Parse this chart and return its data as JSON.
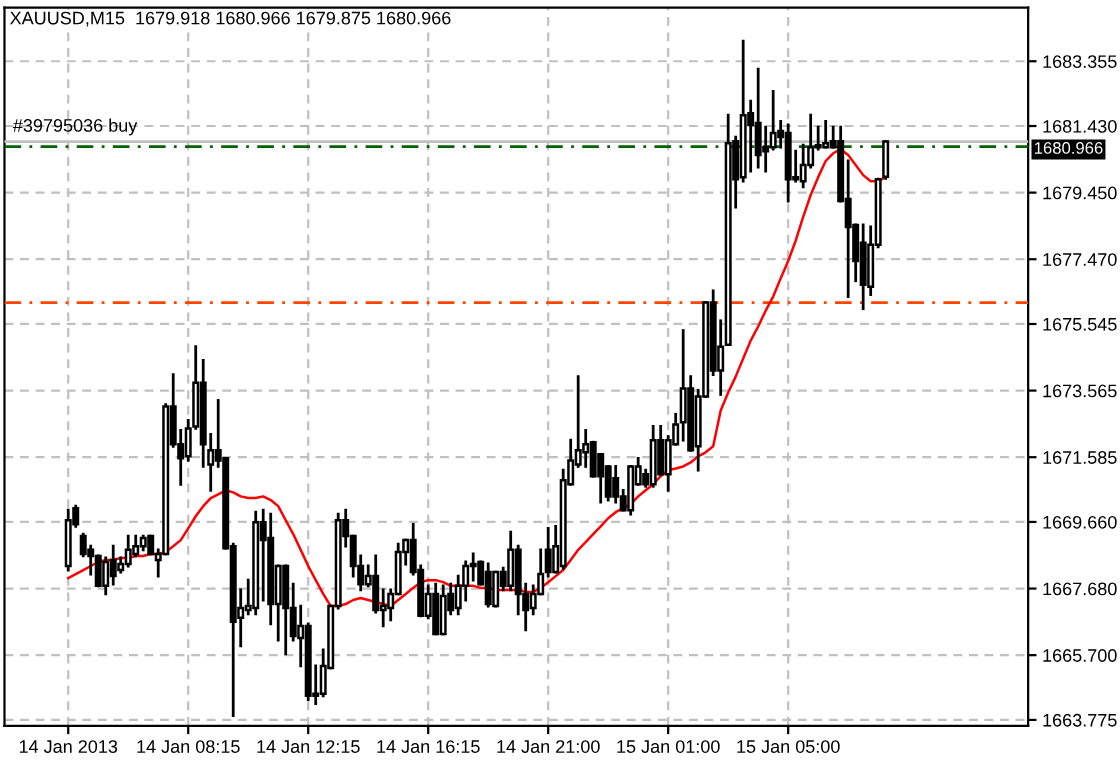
{
  "chart_data": {
    "type": "candlestick",
    "title": "XAUUSD,M15  1679.918 1680.966 1679.875 1680.966",
    "categories": [
      "14 Jan 2013",
      null,
      null,
      null,
      null,
      null,
      null,
      null,
      null,
      null,
      null,
      null,
      null,
      null,
      null,
      null,
      "14 Jan 08:15",
      null,
      null,
      null,
      null,
      null,
      null,
      null,
      null,
      null,
      null,
      null,
      null,
      null,
      null,
      null,
      "14 Jan 12:15",
      null,
      null,
      null,
      null,
      null,
      null,
      null,
      null,
      null,
      null,
      null,
      null,
      null,
      null,
      null,
      "14 Jan 16:15",
      null,
      null,
      null,
      null,
      null,
      null,
      null,
      null,
      null,
      null,
      null,
      null,
      null,
      null,
      null,
      "14 Jan 21:00",
      null,
      null,
      null,
      null,
      null,
      null,
      null,
      null,
      null,
      null,
      null,
      null,
      null,
      null,
      null,
      "15 Jan 01:00",
      null,
      null,
      null,
      null,
      null,
      null,
      null,
      null,
      null,
      null,
      null,
      null,
      null,
      null,
      null,
      "15 Jan 05:00",
      null,
      null,
      null,
      null,
      null,
      null,
      null,
      null,
      null,
      null,
      null,
      null,
      null
    ],
    "ohlc": [
      [
        1668.35,
        1670.01,
        1668.23,
        1669.71
      ],
      [
        1670.07,
        1670.13,
        1669.53,
        1669.59
      ],
      [
        1669.24,
        1669.3,
        1668.65,
        1668.71
      ],
      [
        1668.83,
        1668.94,
        1668.11,
        1668.65
      ],
      [
        1668.65,
        1668.65,
        1667.76,
        1667.76
      ],
      [
        1667.76,
        1668.59,
        1667.52,
        1668.47
      ],
      [
        1668.53,
        1668.94,
        1667.81,
        1668.05
      ],
      [
        1668.23,
        1668.59,
        1668.17,
        1668.41
      ],
      [
        1668.41,
        1669.24,
        1668.35,
        1668.83
      ],
      [
        1668.71,
        1669.24,
        1668.65,
        1668.94
      ],
      [
        1668.94,
        1669.24,
        1668.83,
        1669.18
      ],
      [
        1669.24,
        1669.24,
        1668.71,
        1668.71
      ],
      [
        1668.53,
        1668.83,
        1668.05,
        1668.71
      ],
      [
        1668.71,
        1673.15,
        1668.71,
        1673.09
      ],
      [
        1673.09,
        1674.04,
        1671.91,
        1671.97
      ],
      [
        1671.97,
        1672.38,
        1670.78,
        1671.55
      ],
      [
        1671.61,
        1672.68,
        1671.49,
        1672.44
      ],
      [
        1672.5,
        1674.87,
        1672.44,
        1673.8
      ],
      [
        1673.8,
        1674.46,
        1671.31,
        1671.97
      ],
      [
        1671.37,
        1672.26,
        1670.6,
        1671.79
      ],
      [
        1671.79,
        1673.27,
        1671.31,
        1671.49
      ],
      [
        1671.55,
        1671.55,
        1668.88,
        1668.88
      ],
      [
        1668.94,
        1669.0,
        1663.9,
        1666.69
      ],
      [
        1666.81,
        1667.64,
        1665.98,
        1667.1
      ],
      [
        1667.04,
        1667.93,
        1666.93,
        1667.16
      ],
      [
        1667.1,
        1669.95,
        1666.93,
        1669.65
      ],
      [
        1669.65,
        1670.01,
        1667.34,
        1669.12
      ],
      [
        1669.18,
        1669.89,
        1666.63,
        1667.22
      ],
      [
        1667.22,
        1668.35,
        1666.15,
        1668.35
      ],
      [
        1668.35,
        1668.35,
        1665.74,
        1667.1
      ],
      [
        1667.1,
        1667.81,
        1666.15,
        1666.27
      ],
      [
        1666.21,
        1667.16,
        1665.38,
        1666.57
      ],
      [
        1666.57,
        1666.63,
        1664.38,
        1664.49
      ],
      [
        1664.49,
        1665.38,
        1664.26,
        1664.55
      ],
      [
        1664.55,
        1665.86,
        1664.49,
        1665.38
      ],
      [
        1665.32,
        1667.16,
        1665.32,
        1667.16
      ],
      [
        1667.16,
        1669.89,
        1667.1,
        1669.71
      ],
      [
        1669.71,
        1670.01,
        1668.94,
        1669.24
      ],
      [
        1669.24,
        1669.24,
        1668.05,
        1668.35
      ],
      [
        1668.35,
        1668.65,
        1667.64,
        1667.81
      ],
      [
        1667.81,
        1668.35,
        1667.76,
        1668.05
      ],
      [
        1668.05,
        1668.65,
        1666.98,
        1667.04
      ],
      [
        1667.04,
        1667.64,
        1666.57,
        1667.16
      ],
      [
        1667.1,
        1667.64,
        1666.75,
        1667.52
      ],
      [
        1667.52,
        1669.0,
        1667.52,
        1668.77
      ],
      [
        1668.77,
        1669.12,
        1668.41,
        1669.12
      ],
      [
        1669.12,
        1669.59,
        1668.11,
        1668.17
      ],
      [
        1668.23,
        1668.35,
        1666.87,
        1666.87
      ],
      [
        1666.87,
        1667.76,
        1666.81,
        1667.52
      ],
      [
        1667.52,
        1667.81,
        1666.33,
        1666.33
      ],
      [
        1666.33,
        1667.76,
        1666.33,
        1667.46
      ],
      [
        1667.52,
        1667.81,
        1666.93,
        1667.04
      ],
      [
        1667.1,
        1668.05,
        1666.93,
        1667.76
      ],
      [
        1667.76,
        1668.47,
        1667.34,
        1668.35
      ],
      [
        1668.41,
        1668.71,
        1667.93,
        1668.35
      ],
      [
        1668.47,
        1668.47,
        1667.81,
        1667.81
      ],
      [
        1668.17,
        1668.41,
        1667.16,
        1667.22
      ],
      [
        1667.16,
        1668.17,
        1667.16,
        1668.17
      ],
      [
        1668.17,
        1668.29,
        1667.64,
        1667.76
      ],
      [
        1667.76,
        1669.36,
        1667.64,
        1668.83
      ],
      [
        1668.83,
        1668.94,
        1666.93,
        1667.52
      ],
      [
        1667.52,
        1667.81,
        1666.45,
        1667.04
      ],
      [
        1667.1,
        1667.76,
        1666.93,
        1667.52
      ],
      [
        1667.52,
        1668.83,
        1667.52,
        1668.11
      ],
      [
        1668.83,
        1669.47,
        1668.05,
        1668.17
      ],
      [
        1668.17,
        1669.53,
        1668.17,
        1668.94
      ],
      [
        1668.35,
        1671.2,
        1668.29,
        1670.9
      ],
      [
        1670.78,
        1672.09,
        1670.78,
        1671.49
      ],
      [
        1671.37,
        1673.98,
        1671.31,
        1671.79
      ],
      [
        1671.73,
        1672.38,
        1671.31,
        1671.97
      ],
      [
        1672.03,
        1672.03,
        1671.02,
        1671.02
      ],
      [
        1671.67,
        1671.67,
        1670.25,
        1671.02
      ],
      [
        1671.31,
        1671.31,
        1670.31,
        1670.42
      ],
      [
        1670.96,
        1671.31,
        1670.25,
        1670.42
      ],
      [
        1670.42,
        1670.6,
        1670.01,
        1670.01
      ],
      [
        1670.01,
        1671.31,
        1669.89,
        1671.31
      ],
      [
        1670.78,
        1671.55,
        1670.78,
        1671.31
      ],
      [
        1671.08,
        1671.2,
        1670.72,
        1670.78
      ],
      [
        1670.78,
        1672.5,
        1670.72,
        1672.09
      ],
      [
        1672.09,
        1672.5,
        1671.08,
        1671.08
      ],
      [
        1671.08,
        1672.2,
        1670.6,
        1672.09
      ],
      [
        1671.97,
        1672.86,
        1671.97,
        1672.56
      ],
      [
        1672.62,
        1675.35,
        1672.09,
        1673.63
      ],
      [
        1673.63,
        1673.98,
        1671.79,
        1671.79
      ],
      [
        1671.91,
        1673.57,
        1671.2,
        1673.39
      ],
      [
        1673.39,
        1676.18,
        1673.39,
        1676.18
      ],
      [
        1676.18,
        1676.53,
        1674.04,
        1674.16
      ],
      [
        1674.16,
        1675.64,
        1673.45,
        1674.87
      ],
      [
        1674.93,
        1681.75,
        1674.93,
        1680.92
      ],
      [
        1680.98,
        1681.1,
        1679.02,
        1679.85
      ],
      [
        1679.91,
        1683.95,
        1679.79,
        1681.75
      ],
      [
        1681.81,
        1682.17,
        1680.09,
        1681.46
      ],
      [
        1681.52,
        1683.12,
        1680.21,
        1680.57
      ],
      [
        1680.8,
        1681.4,
        1680.09,
        1680.68
      ],
      [
        1680.8,
        1682.46,
        1680.74,
        1681.22
      ],
      [
        1681.28,
        1681.57,
        1680.8,
        1681.1
      ],
      [
        1681.22,
        1681.46,
        1679.2,
        1679.85
      ],
      [
        1679.91,
        1680.68,
        1679.79,
        1679.85
      ],
      [
        1679.79,
        1680.86,
        1679.62,
        1680.27
      ],
      [
        1680.27,
        1681.75,
        1680.21,
        1680.8
      ],
      [
        1680.8,
        1681.4,
        1680.74,
        1680.86
      ],
      [
        1680.8,
        1681.57,
        1680.8,
        1680.92
      ],
      [
        1680.98,
        1681.4,
        1680.8,
        1680.8
      ],
      [
        1680.98,
        1681.4,
        1679.2,
        1679.2
      ],
      [
        1679.26,
        1680.39,
        1676.36,
        1678.43
      ],
      [
        1678.49,
        1678.49,
        1676.83,
        1677.42
      ],
      [
        1677.96,
        1678.49,
        1676.0,
        1676.71
      ],
      [
        1676.65,
        1678.43,
        1676.42,
        1677.9
      ],
      [
        1677.9,
        1679.85,
        1677.84,
        1679.85
      ],
      [
        1679.918,
        1680.966,
        1679.875,
        1680.966
      ]
    ],
    "color": "#000000",
    "series": [
      {
        "type": "line",
        "color": "#ff0000",
        "values": [
          1667.99,
          1668.11,
          1668.23,
          1668.35,
          1668.47,
          1668.53,
          1668.53,
          1668.59,
          1668.59,
          1668.65,
          1668.65,
          1668.71,
          1668.71,
          1668.77,
          1668.94,
          1669.12,
          1669.47,
          1669.83,
          1670.13,
          1670.37,
          1670.48,
          1670.6,
          1670.54,
          1670.42,
          1670.37,
          1670.37,
          1670.42,
          1670.31,
          1670.13,
          1669.71,
          1669.3,
          1668.83,
          1668.35,
          1667.93,
          1667.52,
          1667.16,
          1667.16,
          1667.22,
          1667.34,
          1667.4,
          1667.34,
          1667.28,
          1667.22,
          1667.16,
          1667.34,
          1667.52,
          1667.7,
          1667.87,
          1667.93,
          1667.93,
          1667.87,
          1667.76,
          1667.76,
          1667.76,
          1667.76,
          1667.7,
          1667.7,
          1667.64,
          1667.64,
          1667.64,
          1667.64,
          1667.58,
          1667.58,
          1667.7,
          1667.87,
          1668.05,
          1668.23,
          1668.53,
          1668.83,
          1669.06,
          1669.3,
          1669.53,
          1669.77,
          1669.95,
          1670.07,
          1670.19,
          1670.42,
          1670.6,
          1670.78,
          1671.02,
          1671.2,
          1671.25,
          1671.31,
          1671.43,
          1671.61,
          1671.73,
          1671.91,
          1672.97,
          1673.51,
          1673.98,
          1674.52,
          1675.05,
          1675.47,
          1675.94,
          1676.36,
          1676.9,
          1677.42,
          1678.02,
          1678.73,
          1679.38,
          1679.91,
          1680.39,
          1680.62,
          1680.74,
          1680.57,
          1680.27,
          1679.97,
          1679.79,
          1679.79,
          1679.91
        ]
      }
    ],
    "ylim": [
      1663.6,
      1684.95
    ],
    "yticks": [
      1663.775,
      {
        "value": 1665.7,
        "label": "1665.700"
      },
      {
        "value": 1667.68,
        "label": "1667.680"
      },
      {
        "value": 1669.66,
        "label": "1669.660"
      },
      1671.585,
      1673.565,
      1675.545,
      {
        "value": 1677.47,
        "label": "1677.470"
      },
      {
        "value": 1679.45,
        "label": "1679.450"
      },
      {
        "value": 1681.43,
        "label": "1681.430"
      },
      1683.355
    ],
    "ref_lines": [
      {
        "axis": "y",
        "value": 1680.966,
        "label": "1680.966",
        "color": "#c0c0c0",
        "line_style": "solid"
      },
      {
        "axis": "y",
        "value": 1680.82,
        "label": "#39795036 buy",
        "color": "#006400",
        "line_style": "dashed"
      },
      {
        "axis": "y",
        "value": 1676.18,
        "color": "#ff4500",
        "line_style": "dashed"
      }
    ],
    "grid": true,
    "legend": false
  }
}
